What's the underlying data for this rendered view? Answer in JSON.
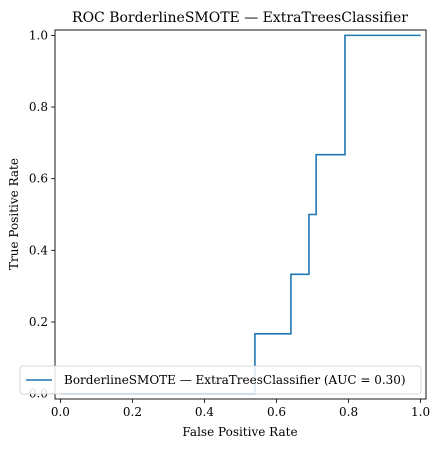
{
  "chart_data": {
    "type": "line",
    "title": "ROC BorderlineSMOTE — ExtraTreesClassifier",
    "xlabel": "False Positive Rate",
    "ylabel": "True Positive Rate",
    "xlim": [
      0,
      1
    ],
    "ylim": [
      0,
      1
    ],
    "xticks": [
      "0.0",
      "0.2",
      "0.4",
      "0.6",
      "0.8",
      "1.0"
    ],
    "yticks": [
      "0.0",
      "0.2",
      "0.4",
      "0.6",
      "0.8",
      "1.0"
    ],
    "grid": false,
    "legend_position": "lower-right",
    "series": [
      {
        "name": "BorderlineSMOTE — ExtraTreesClassifier (AUC = 0.30)",
        "color": "#1f77b4",
        "x": [
          0.0,
          0.54,
          0.54,
          0.64,
          0.64,
          0.69,
          0.69,
          0.71,
          0.71,
          0.79,
          0.79,
          1.0
        ],
        "y": [
          0.0,
          0.0,
          0.167,
          0.167,
          0.333,
          0.333,
          0.5,
          0.5,
          0.667,
          0.667,
          1.0,
          1.0
        ]
      }
    ]
  }
}
